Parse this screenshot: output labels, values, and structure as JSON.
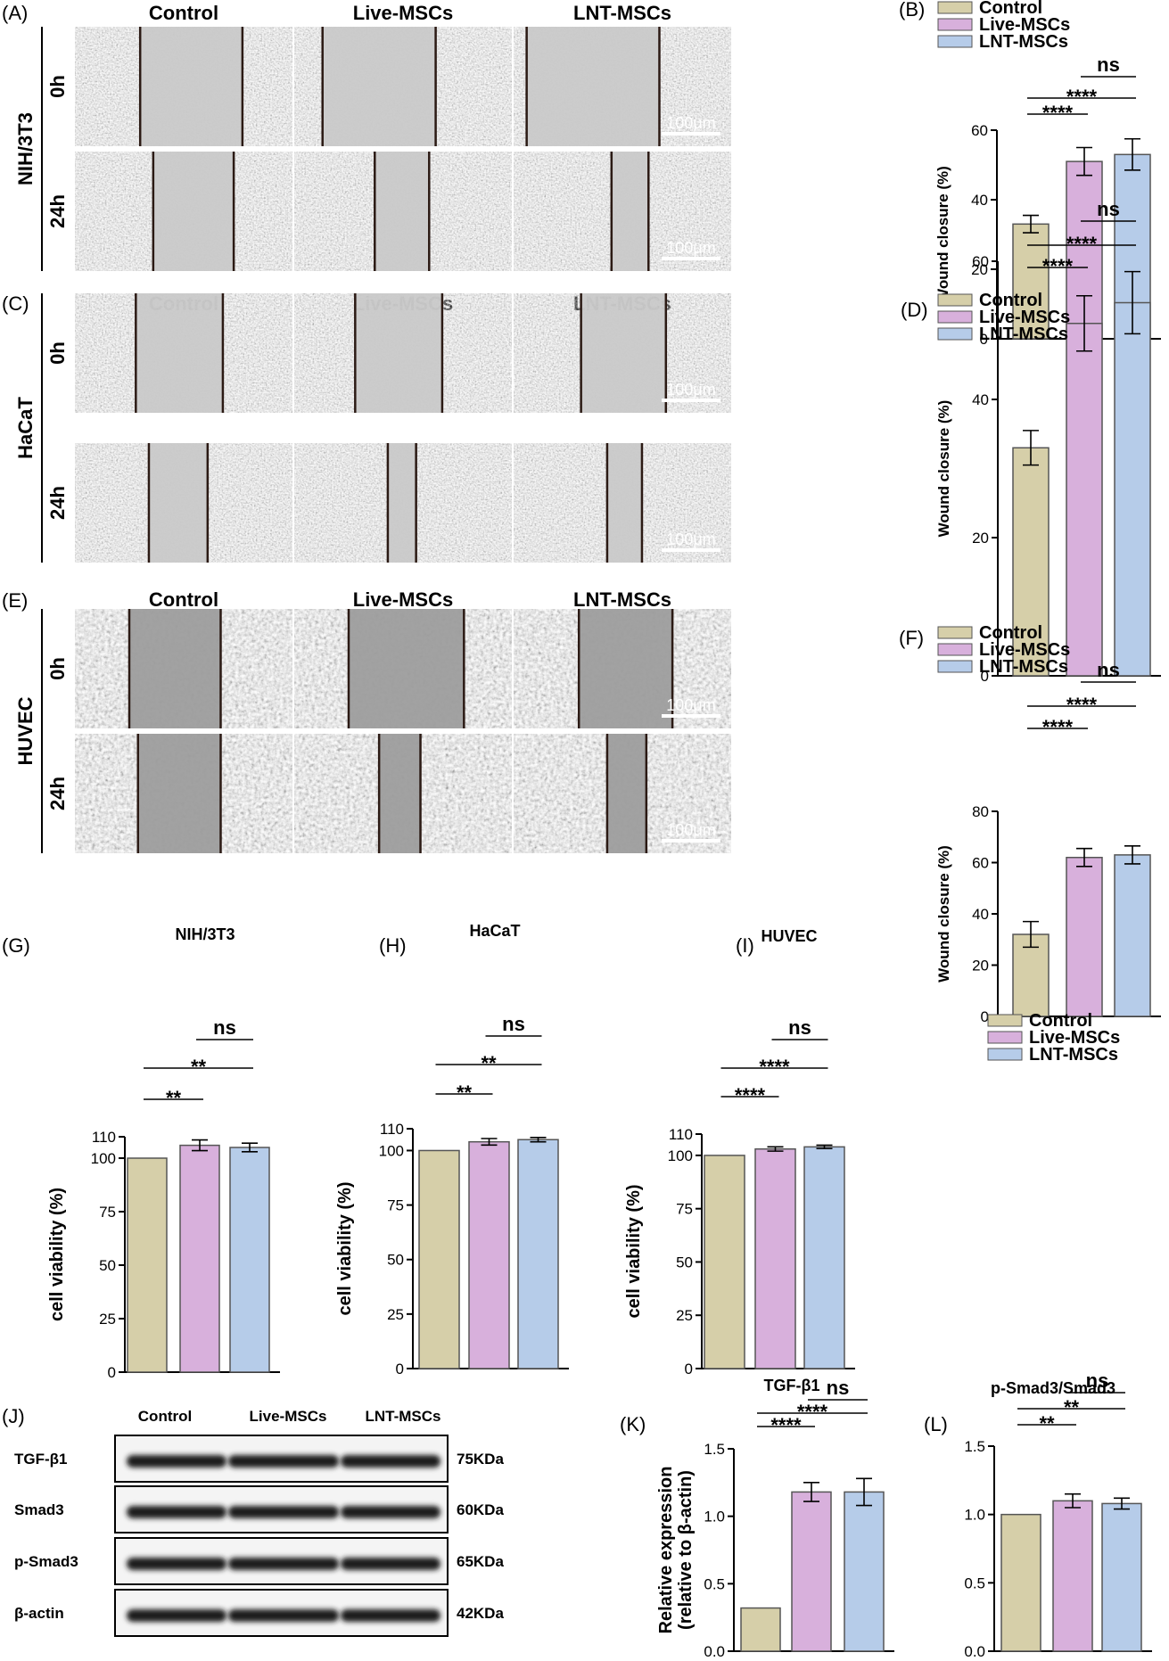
{
  "colors": {
    "Control": "#d6cfa9",
    "Live-MSCs": "#d8b0dc",
    "LNT-MSCs": "#b6cce9",
    "edge": "#555555"
  },
  "micrographs": {
    "groups": [
      "Control",
      "Live-MSCs",
      "LNT-MSCs"
    ],
    "timepoints": [
      "0h",
      "24h"
    ],
    "scale_bar": "100μm",
    "rows": [
      {
        "panel": "(A)",
        "cell_line": "NIH/3T3"
      },
      {
        "panel": "(C)",
        "cell_line": "HaCaT"
      },
      {
        "panel": "(E)",
        "cell_line": "HUVEC"
      }
    ]
  },
  "western": {
    "panel": "(J)",
    "lanes": [
      "Control",
      "Live-MSCs",
      "LNT-MSCs"
    ],
    "bands": [
      {
        "protein": "TGF-β1",
        "size": "75KDa"
      },
      {
        "protein": "Smad3",
        "size": "60KDa"
      },
      {
        "protein": "p-Smad3",
        "size": "65KDa"
      },
      {
        "protein": "β-actin",
        "size": "42KDa"
      }
    ]
  },
  "chart_data": [
    {
      "id": "B",
      "panel": "(B)",
      "type": "bar",
      "title": "",
      "ylabel": "Wound closure (%)",
      "categories": [
        "Control",
        "Live-MSCs",
        "LNT-MSCs"
      ],
      "values": [
        33,
        51,
        53
      ],
      "errors": [
        2.5,
        4,
        4.5
      ],
      "ylim": [
        0,
        60
      ],
      "yticks": [
        0,
        20,
        40,
        60
      ],
      "yticklabels": [
        "0",
        "20",
        "40",
        "60"
      ],
      "legend": [
        "Control",
        "Live-MSCs",
        "LNT-MSCs"
      ],
      "legend_position": "top",
      "significance": [
        {
          "from": 0,
          "to": 1,
          "label": "****"
        },
        {
          "from": 0,
          "to": 2,
          "label": "****"
        },
        {
          "from": 1,
          "to": 2,
          "label": "ns"
        }
      ]
    },
    {
      "id": "D",
      "panel": "(D)",
      "type": "bar",
      "title": "",
      "ylabel": "Wound closure (%)",
      "categories": [
        "Control",
        "Live-MSCs",
        "LNT-MSCs"
      ],
      "values": [
        33,
        51,
        54
      ],
      "errors": [
        2.5,
        4,
        4.5
      ],
      "ylim": [
        0,
        60
      ],
      "yticks": [
        0,
        20,
        40,
        60
      ],
      "yticklabels": [
        "0",
        "20",
        "40",
        "60"
      ],
      "legend": [
        "Control",
        "Live-MSCs",
        "LNT-MSCs"
      ],
      "legend_position": "top",
      "significance": [
        {
          "from": 0,
          "to": 1,
          "label": "****"
        },
        {
          "from": 0,
          "to": 2,
          "label": "****"
        },
        {
          "from": 1,
          "to": 2,
          "label": "ns"
        }
      ]
    },
    {
      "id": "F",
      "panel": "(F)",
      "type": "bar",
      "title": "",
      "ylabel": "Wound closure (%)",
      "categories": [
        "Control",
        "Live-MSCs",
        "LNT-MSCs"
      ],
      "values": [
        32,
        62,
        63
      ],
      "errors": [
        5,
        3.5,
        3.5
      ],
      "ylim": [
        0,
        80
      ],
      "yticks": [
        0,
        20,
        40,
        60,
        80
      ],
      "yticklabels": [
        "0",
        "20",
        "40",
        "60",
        "80"
      ],
      "legend": [
        "Control",
        "Live-MSCs",
        "LNT-MSCs"
      ],
      "legend_position": "top",
      "significance": [
        {
          "from": 0,
          "to": 1,
          "label": "****"
        },
        {
          "from": 0,
          "to": 2,
          "label": "****"
        },
        {
          "from": 1,
          "to": 2,
          "label": "ns"
        }
      ]
    },
    {
      "id": "G",
      "panel": "(G)",
      "type": "bar",
      "title": "NIH/3T3",
      "ylabel": "cell viability (%)",
      "categories": [
        "Control",
        "Live-MSCs",
        "LNT-MSCs"
      ],
      "values": [
        100,
        106,
        105
      ],
      "errors": [
        0,
        2.5,
        2
      ],
      "ylim": [
        0,
        110
      ],
      "yticks": [
        0,
        25,
        50,
        75,
        100,
        110
      ],
      "yticklabels": [
        "0",
        "25",
        "50",
        "75",
        "100",
        "110"
      ],
      "significance": [
        {
          "from": 0,
          "to": 1,
          "label": "**"
        },
        {
          "from": 0,
          "to": 2,
          "label": "**"
        },
        {
          "from": 1,
          "to": 2,
          "label": "ns"
        }
      ]
    },
    {
      "id": "H",
      "panel": "(H)",
      "type": "bar",
      "title": "HaCaT",
      "ylabel": "cell viability (%)",
      "categories": [
        "Control",
        "Live-MSCs",
        "LNT-MSCs"
      ],
      "values": [
        100,
        104,
        105
      ],
      "errors": [
        0,
        1.5,
        1
      ],
      "ylim": [
        0,
        110
      ],
      "yticks": [
        0,
        25,
        50,
        75,
        100,
        110
      ],
      "yticklabels": [
        "0",
        "25",
        "50",
        "75",
        "100",
        "110"
      ],
      "significance": [
        {
          "from": 0,
          "to": 1,
          "label": "**"
        },
        {
          "from": 0,
          "to": 2,
          "label": "**"
        },
        {
          "from": 1,
          "to": 2,
          "label": "ns"
        }
      ]
    },
    {
      "id": "I",
      "panel": "(I)",
      "type": "bar",
      "title": "HUVEC",
      "ylabel": "cell viability (%)",
      "categories": [
        "Control",
        "Live-MSCs",
        "LNT-MSCs"
      ],
      "values": [
        100,
        103,
        104
      ],
      "errors": [
        0,
        1,
        0.8
      ],
      "ylim": [
        0,
        110
      ],
      "yticks": [
        0,
        25,
        50,
        75,
        100,
        110
      ],
      "yticklabels": [
        "0",
        "25",
        "50",
        "75",
        "100",
        "110"
      ],
      "legend": [
        "Control",
        "Live-MSCs",
        "LNT-MSCs"
      ],
      "legend_position": "right",
      "significance": [
        {
          "from": 0,
          "to": 1,
          "label": "****"
        },
        {
          "from": 0,
          "to": 2,
          "label": "****"
        },
        {
          "from": 1,
          "to": 2,
          "label": "ns"
        }
      ]
    },
    {
      "id": "K",
      "panel": "(K)",
      "type": "bar",
      "title": "TGF-β1",
      "ylabel": "Relative expression",
      "ylabel2": "(relative to β-actin)",
      "categories": [
        "Control",
        "Live-MSCs",
        "LNT-MSCs"
      ],
      "values": [
        0.32,
        1.18,
        1.18
      ],
      "errors": [
        0,
        0.07,
        0.1
      ],
      "ylim": [
        0,
        1.5
      ],
      "yticks": [
        0,
        0.5,
        1.0,
        1.5
      ],
      "yticklabels": [
        "0.0",
        "0.5",
        "1.0",
        "1.5"
      ],
      "significance": [
        {
          "from": 0,
          "to": 1,
          "label": "****"
        },
        {
          "from": 0,
          "to": 2,
          "label": "****"
        },
        {
          "from": 1,
          "to": 2,
          "label": "ns"
        }
      ]
    },
    {
      "id": "L",
      "panel": "(L)",
      "type": "bar",
      "title": "p-Smad3/Smad3",
      "ylabel": "",
      "categories": [
        "Control",
        "Live-MSCs",
        "LNT-MSCs"
      ],
      "values": [
        1.0,
        1.1,
        1.08
      ],
      "errors": [
        0,
        0.05,
        0.04
      ],
      "ylim": [
        0,
        1.5
      ],
      "yticks": [
        0,
        0.5,
        1.0,
        1.5
      ],
      "yticklabels": [
        "0.0",
        "0.5",
        "1.0",
        "1.5"
      ],
      "significance": [
        {
          "from": 0,
          "to": 1,
          "label": "**"
        },
        {
          "from": 0,
          "to": 2,
          "label": "**"
        },
        {
          "from": 1,
          "to": 2,
          "label": "ns"
        }
      ]
    }
  ]
}
